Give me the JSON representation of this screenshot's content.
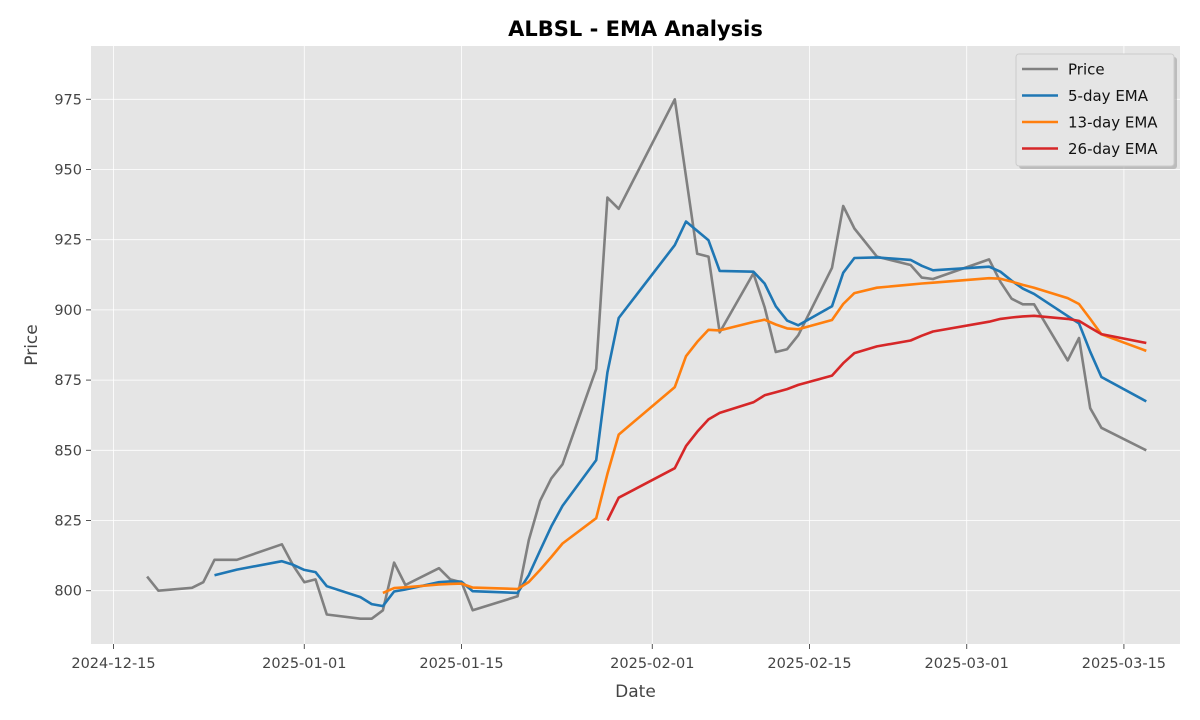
{
  "chart_data": {
    "type": "line",
    "title": "ALBSL - EMA Analysis",
    "xlabel": "Date",
    "ylabel": "Price",
    "x_ticks": [
      "2024-12-15",
      "2025-01-01",
      "2025-01-15",
      "2025-02-01",
      "2025-02-15",
      "2025-03-01",
      "2025-03-15"
    ],
    "y_ticks": [
      800,
      825,
      850,
      875,
      900,
      925,
      950,
      975
    ],
    "xlim": [
      "2024-12-13",
      "2025-03-20"
    ],
    "ylim": [
      781,
      994
    ],
    "grid": true,
    "legend_position": "top-right",
    "colors": {
      "background": "#e5e5e5",
      "Price": "#808080",
      "5-day EMA": "#1f77b4",
      "13-day EMA": "#ff7f0e",
      "26-day EMA": "#d62728"
    },
    "series": [
      {
        "name": "Price",
        "points": [
          [
            "2024-12-18",
            805
          ],
          [
            "2024-12-19",
            800
          ],
          [
            "2024-12-22",
            801
          ],
          [
            "2024-12-23",
            803
          ],
          [
            "2024-12-24",
            811
          ],
          [
            "2024-12-26",
            811
          ],
          [
            "2024-12-30",
            816.5
          ],
          [
            "2024-12-31",
            809
          ],
          [
            "2025-01-01",
            803
          ],
          [
            "2025-01-02",
            804
          ],
          [
            "2025-01-03",
            791.5
          ],
          [
            "2025-01-06",
            790
          ],
          [
            "2025-01-07",
            790
          ],
          [
            "2025-01-08",
            793
          ],
          [
            "2025-01-09",
            810
          ],
          [
            "2025-01-10",
            802
          ],
          [
            "2025-01-13",
            808
          ],
          [
            "2025-01-14",
            804
          ],
          [
            "2025-01-15",
            803
          ],
          [
            "2025-01-16",
            793
          ],
          [
            "2025-01-20",
            798
          ],
          [
            "2025-01-21",
            818
          ],
          [
            "2025-01-22",
            832
          ],
          [
            "2025-01-23",
            840
          ],
          [
            "2025-01-24",
            845
          ],
          [
            "2025-01-27",
            879
          ],
          [
            "2025-01-28",
            940
          ],
          [
            "2025-01-29",
            936
          ],
          [
            "2025-02-03",
            975
          ],
          [
            "2025-02-05",
            920
          ],
          [
            "2025-02-06",
            919
          ],
          [
            "2025-02-07",
            892
          ],
          [
            "2025-02-10",
            913
          ],
          [
            "2025-02-11",
            901
          ],
          [
            "2025-02-12",
            885
          ],
          [
            "2025-02-13",
            886
          ],
          [
            "2025-02-14",
            891
          ],
          [
            "2025-02-17",
            915
          ],
          [
            "2025-02-18",
            937
          ],
          [
            "2025-02-19",
            929
          ],
          [
            "2025-02-21",
            919
          ],
          [
            "2025-02-24",
            916
          ],
          [
            "2025-02-25",
            911.5
          ],
          [
            "2025-02-26",
            911
          ],
          [
            "2025-03-03",
            918
          ],
          [
            "2025-03-04",
            910
          ],
          [
            "2025-03-05",
            904
          ],
          [
            "2025-03-06",
            902
          ],
          [
            "2025-03-07",
            902
          ],
          [
            "2025-03-10",
            882
          ],
          [
            "2025-03-11",
            890
          ],
          [
            "2025-03-12",
            865
          ],
          [
            "2025-03-13",
            858
          ],
          [
            "2025-03-17",
            850
          ]
        ]
      },
      {
        "name": "5-day EMA",
        "points": [
          [
            "2024-12-24",
            805.5
          ],
          [
            "2024-12-26",
            807.5
          ],
          [
            "2024-12-30",
            810.5
          ],
          [
            "2024-12-31",
            809.2
          ],
          [
            "2025-01-01",
            807.4
          ],
          [
            "2025-01-02",
            806.6
          ],
          [
            "2025-01-03",
            801.6
          ],
          [
            "2025-01-06",
            797.7
          ],
          [
            "2025-01-07",
            795.2
          ],
          [
            "2025-01-08",
            794.5
          ],
          [
            "2025-01-09",
            799.7
          ],
          [
            "2025-01-10",
            800.4
          ],
          [
            "2025-01-13",
            803.0
          ],
          [
            "2025-01-14",
            803.3
          ],
          [
            "2025-01-15",
            803.2
          ],
          [
            "2025-01-16",
            799.8
          ],
          [
            "2025-01-20",
            799.2
          ],
          [
            "2025-01-21",
            805.5
          ],
          [
            "2025-01-22",
            814.3
          ],
          [
            "2025-01-23",
            822.9
          ],
          [
            "2025-01-24",
            830.2
          ],
          [
            "2025-01-27",
            846.5
          ],
          [
            "2025-01-28",
            877.7
          ],
          [
            "2025-01-29",
            897.1
          ],
          [
            "2025-02-03",
            923.1
          ],
          [
            "2025-02-04",
            931.5
          ],
          [
            "2025-02-06",
            924.8
          ],
          [
            "2025-02-07",
            913.9
          ],
          [
            "2025-02-10",
            913.6
          ],
          [
            "2025-02-11",
            909.4
          ],
          [
            "2025-02-12",
            901.3
          ],
          [
            "2025-02-13",
            896.2
          ],
          [
            "2025-02-14",
            894.5
          ],
          [
            "2025-02-17",
            901.3
          ],
          [
            "2025-02-18",
            913.2
          ],
          [
            "2025-02-19",
            918.5
          ],
          [
            "2025-02-21",
            918.7
          ],
          [
            "2025-02-24",
            917.8
          ],
          [
            "2025-02-25",
            915.7
          ],
          [
            "2025-02-26",
            914.1
          ],
          [
            "2025-03-03",
            915.4
          ],
          [
            "2025-03-04",
            913.6
          ],
          [
            "2025-03-05",
            910.4
          ],
          [
            "2025-03-06",
            907.6
          ],
          [
            "2025-03-07",
            905.7
          ],
          [
            "2025-03-10",
            897.8
          ],
          [
            "2025-03-11",
            895.2
          ],
          [
            "2025-03-12",
            885.1
          ],
          [
            "2025-03-13",
            876.1
          ],
          [
            "2025-03-17",
            867.4
          ]
        ]
      },
      {
        "name": "13-day EMA",
        "points": [
          [
            "2025-01-08",
            799.2
          ],
          [
            "2025-01-09",
            800.9
          ],
          [
            "2025-01-10",
            801.2
          ],
          [
            "2025-01-13",
            802.2
          ],
          [
            "2025-01-14",
            802.4
          ],
          [
            "2025-01-15",
            802.5
          ],
          [
            "2025-01-16",
            801.1
          ],
          [
            "2025-01-20",
            800.6
          ],
          [
            "2025-01-21",
            803.1
          ],
          [
            "2025-01-22",
            807.4
          ],
          [
            "2025-01-23",
            812.0
          ],
          [
            "2025-01-24",
            816.8
          ],
          [
            "2025-01-27",
            825.8
          ],
          [
            "2025-01-28",
            841.6
          ],
          [
            "2025-01-29",
            855.6
          ],
          [
            "2025-02-03",
            872.5
          ],
          [
            "2025-02-04",
            883.5
          ],
          [
            "2025-02-05",
            888.6
          ],
          [
            "2025-02-06",
            892.9
          ],
          [
            "2025-02-07",
            892.7
          ],
          [
            "2025-02-10",
            895.7
          ],
          [
            "2025-02-11",
            896.5
          ],
          [
            "2025-02-12",
            894.8
          ],
          [
            "2025-02-13",
            893.4
          ],
          [
            "2025-02-14",
            893.1
          ],
          [
            "2025-02-17",
            896.4
          ],
          [
            "2025-02-18",
            902.1
          ],
          [
            "2025-02-19",
            906.0
          ],
          [
            "2025-02-21",
            907.9
          ],
          [
            "2025-02-24",
            909.0
          ],
          [
            "2025-02-25",
            909.4
          ],
          [
            "2025-02-26",
            909.7
          ],
          [
            "2025-03-03",
            911.3
          ],
          [
            "2025-03-04",
            911.1
          ],
          [
            "2025-03-05",
            910.1
          ],
          [
            "2025-03-06",
            908.9
          ],
          [
            "2025-03-07",
            907.9
          ],
          [
            "2025-03-10",
            904.2
          ],
          [
            "2025-03-11",
            902.1
          ],
          [
            "2025-03-12",
            896.8
          ],
          [
            "2025-03-13",
            891.3
          ],
          [
            "2025-03-17",
            885.4
          ]
        ]
      },
      {
        "name": "26-day EMA",
        "points": [
          [
            "2025-01-28",
            825.0
          ],
          [
            "2025-01-29",
            833.1
          ],
          [
            "2025-02-03",
            843.6
          ],
          [
            "2025-02-04",
            851.5
          ],
          [
            "2025-02-05",
            856.6
          ],
          [
            "2025-02-06",
            861.0
          ],
          [
            "2025-02-07",
            863.3
          ],
          [
            "2025-02-10",
            867.1
          ],
          [
            "2025-02-11",
            869.6
          ],
          [
            "2025-02-12",
            870.7
          ],
          [
            "2025-02-13",
            871.8
          ],
          [
            "2025-02-14",
            873.3
          ],
          [
            "2025-02-17",
            876.6
          ],
          [
            "2025-02-18",
            881.0
          ],
          [
            "2025-02-19",
            884.6
          ],
          [
            "2025-02-21",
            887.0
          ],
          [
            "2025-02-24",
            889.1
          ],
          [
            "2025-02-25",
            890.8
          ],
          [
            "2025-02-26",
            892.3
          ],
          [
            "2025-03-03",
            895.8
          ],
          [
            "2025-03-04",
            896.8
          ],
          [
            "2025-03-05",
            897.3
          ],
          [
            "2025-03-06",
            897.7
          ],
          [
            "2025-03-07",
            897.9
          ],
          [
            "2025-03-10",
            896.8
          ],
          [
            "2025-03-11",
            896.1
          ],
          [
            "2025-03-12",
            893.7
          ],
          [
            "2025-03-13",
            891.4
          ],
          [
            "2025-03-17",
            888.2
          ]
        ]
      }
    ]
  }
}
